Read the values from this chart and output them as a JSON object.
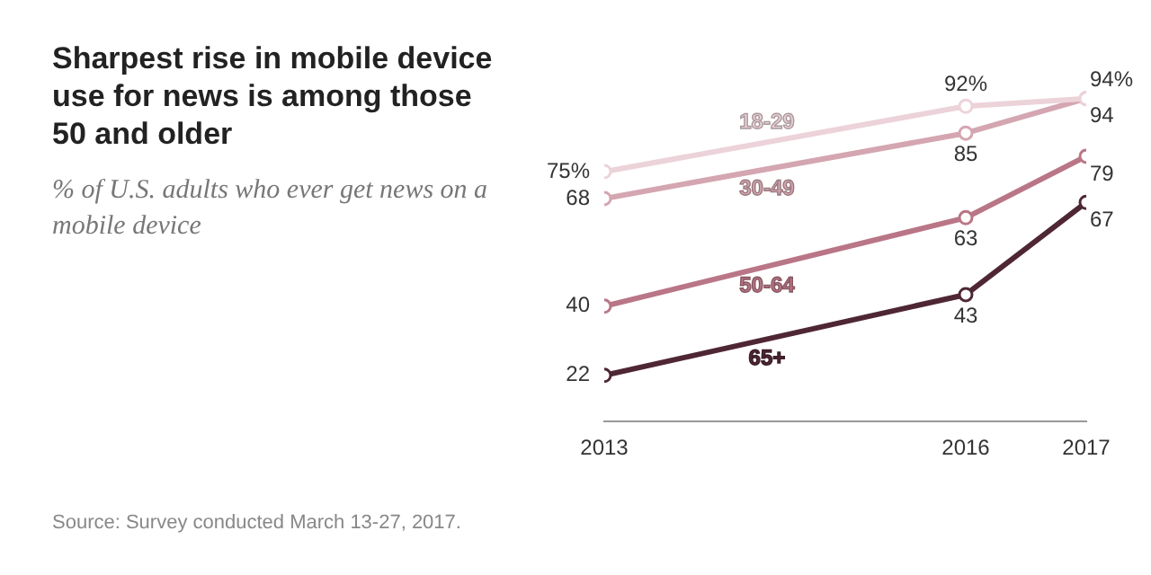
{
  "chart_data": {
    "type": "line",
    "title": "Sharpest rise in mobile device use for news is among those 50 and older",
    "subtitle": "% of U.S. adults who ever get news on a mobile device",
    "x": [
      2013,
      2016,
      2017
    ],
    "xlim": [
      2013,
      2017
    ],
    "xticks": [
      2013,
      2016,
      2017
    ],
    "tick_labels": "x",
    "grid": false,
    "legend": false,
    "marker": "circle",
    "line_style": "solid",
    "series": [
      {
        "name": "18-29",
        "color": "#ecd3d9",
        "values": [
          75,
          92,
          94
        ],
        "value_labels": [
          "75%",
          "92%",
          "94%"
        ]
      },
      {
        "name": "30-49",
        "color": "#d4a6b1",
        "values": [
          68,
          85,
          94
        ],
        "value_labels": [
          "68",
          "85",
          "94"
        ]
      },
      {
        "name": "50-64",
        "color": "#b97686",
        "values": [
          40,
          63,
          79
        ],
        "value_labels": [
          "40",
          "63",
          "79"
        ]
      },
      {
        "name": "65+",
        "color": "#4f2734",
        "values": [
          22,
          43,
          67
        ],
        "value_labels": [
          "22",
          "43",
          "67"
        ]
      }
    ],
    "annotations": [
      "Source: Survey conducted March 13-27, 2017."
    ]
  }
}
